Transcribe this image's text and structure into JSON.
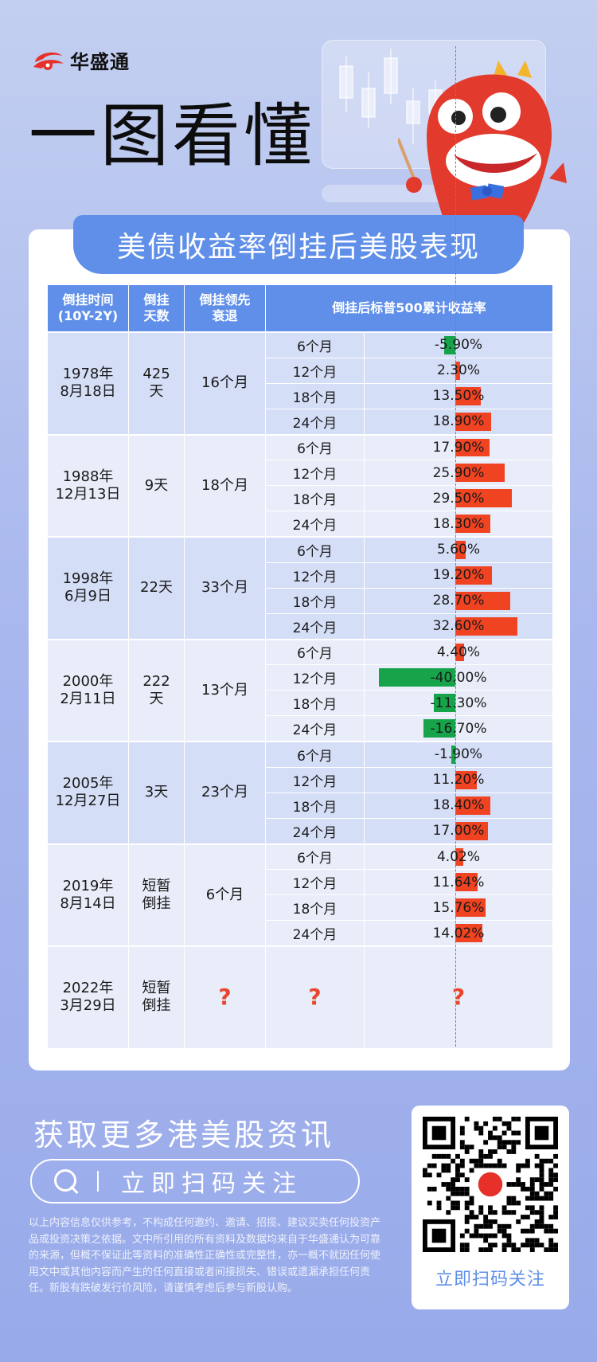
{
  "brand": {
    "logo_text": "华盛通",
    "accent_color": "#5f8fe8",
    "red": "#ef4322",
    "green": "#16a34a"
  },
  "headline": "一图看懂",
  "banner_title": "美债收益率倒挂后美股表现",
  "table": {
    "headers": {
      "time": "倒挂时间\n(10Y-2Y)",
      "days": "倒挂\n天数",
      "lead": "倒挂领先\n衰退",
      "returns": "倒挂后标普500累计收益率"
    },
    "groups": [
      {
        "date": "1978年\n8月18日",
        "days": "425\n天",
        "lead": "16个月",
        "rows": [
          {
            "period": "6个月",
            "value": "-5.90%",
            "num": -5.9
          },
          {
            "period": "12个月",
            "value": "2.30%",
            "num": 2.3
          },
          {
            "period": "18个月",
            "value": "13.50%",
            "num": 13.5
          },
          {
            "period": "24个月",
            "value": "18.90%",
            "num": 18.9
          }
        ]
      },
      {
        "date": "1988年\n12月13日",
        "days": "9天",
        "lead": "18个月",
        "rows": [
          {
            "period": "6个月",
            "value": "17.90%",
            "num": 17.9
          },
          {
            "period": "12个月",
            "value": "25.90%",
            "num": 25.9
          },
          {
            "period": "18个月",
            "value": "29.50%",
            "num": 29.5
          },
          {
            "period": "24个月",
            "value": "18.30%",
            "num": 18.3
          }
        ]
      },
      {
        "date": "1998年\n6月9日",
        "days": "22天",
        "lead": "33个月",
        "rows": [
          {
            "period": "6个月",
            "value": "5.60%",
            "num": 5.6
          },
          {
            "period": "12个月",
            "value": "19.20%",
            "num": 19.2
          },
          {
            "period": "18个月",
            "value": "28.70%",
            "num": 28.7
          },
          {
            "period": "24个月",
            "value": "32.60%",
            "num": 32.6
          }
        ]
      },
      {
        "date": "2000年\n2月11日",
        "days": "222\n天",
        "lead": "13个月",
        "rows": [
          {
            "period": "6个月",
            "value": "4.40%",
            "num": 4.4
          },
          {
            "period": "12个月",
            "value": "-40.00%",
            "num": -40.0
          },
          {
            "period": "18个月",
            "value": "-11.30%",
            "num": -11.3
          },
          {
            "period": "24个月",
            "value": "-16.70%",
            "num": -16.7
          }
        ]
      },
      {
        "date": "2005年\n12月27日",
        "days": "3天",
        "lead": "23个月",
        "rows": [
          {
            "period": "6个月",
            "value": "-1.90%",
            "num": -1.9
          },
          {
            "period": "12个月",
            "value": "11.20%",
            "num": 11.2
          },
          {
            "period": "18个月",
            "value": "18.40%",
            "num": 18.4
          },
          {
            "period": "24个月",
            "value": "17.00%",
            "num": 17.0
          }
        ]
      },
      {
        "date": "2019年\n8月14日",
        "days": "短暂\n倒挂",
        "lead": "6个月",
        "rows": [
          {
            "period": "6个月",
            "value": "4.02%",
            "num": 4.02
          },
          {
            "period": "12个月",
            "value": "11.64%",
            "num": 11.64
          },
          {
            "period": "18个月",
            "value": "15.76%",
            "num": 15.76
          },
          {
            "period": "24个月",
            "value": "14.02%",
            "num": 14.02
          }
        ]
      }
    ],
    "last": {
      "date": "2022年\n3月29日",
      "days": "短暂\n倒挂",
      "lead": "?",
      "period": "?",
      "value": "?"
    }
  },
  "footer": {
    "cta_title": "获取更多港美股资讯",
    "cta_button": "立即扫码关注",
    "qr_label": "立即扫码关注",
    "disclaimer": "以上内容信息仅供参考，不构成任何邀约、邀请、招揽、建议买卖任何投资产品或投资决策之依据。文中所引用的所有资料及数据均来自于华盛通认为可靠的来源，但概不保证此等资料的准确性正确性或完整性，亦一概不就因任何使用文中或其他内容而产生的任何直接或者间接损失、错误或遗漏承担任何责任。新股有跌破发行价风险，请谨慎考虑后参与新股认购。"
  }
}
